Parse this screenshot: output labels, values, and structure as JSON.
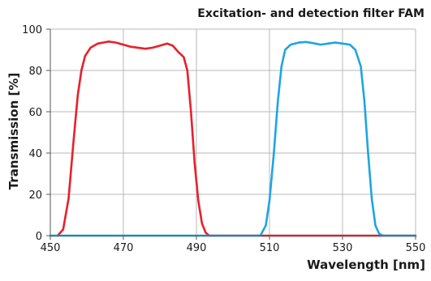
{
  "chart_data": {
    "type": "line",
    "title": "Excitation- and detection filter FAM",
    "xlabel": "Wavelength [nm]",
    "ylabel": "Transmission [%]",
    "xlim": [
      450,
      550
    ],
    "ylim": [
      0,
      100
    ],
    "x_ticks": [
      450,
      470,
      490,
      510,
      530,
      550
    ],
    "y_ticks": [
      0,
      20,
      40,
      60,
      80,
      100
    ],
    "grid": true,
    "legend": "none",
    "series": [
      {
        "color": "#e8202a",
        "points": [
          [
            452,
            0
          ],
          [
            453.5,
            3
          ],
          [
            455,
            18
          ],
          [
            456.3,
            45
          ],
          [
            457.5,
            68
          ],
          [
            458.5,
            80
          ],
          [
            459.5,
            87
          ],
          [
            461,
            91
          ],
          [
            463,
            93
          ],
          [
            466,
            94
          ],
          [
            468,
            93.5
          ],
          [
            470,
            92.5
          ],
          [
            472,
            91.5
          ],
          [
            474,
            91
          ],
          [
            476,
            90.5
          ],
          [
            478,
            91
          ],
          [
            480,
            92
          ],
          [
            482,
            93
          ],
          [
            483.5,
            92
          ],
          [
            485,
            89
          ],
          [
            486.5,
            86.5
          ],
          [
            487.5,
            80
          ],
          [
            488.5,
            60
          ],
          [
            489.5,
            35
          ],
          [
            490.5,
            17
          ],
          [
            491.5,
            6
          ],
          [
            492.5,
            1.5
          ],
          [
            493.5,
            0
          ],
          [
            550,
            0
          ]
        ]
      },
      {
        "color": "#1ea5e0",
        "points": [
          [
            450,
            0
          ],
          [
            507.5,
            0
          ],
          [
            509,
            5
          ],
          [
            510,
            17
          ],
          [
            511.2,
            40
          ],
          [
            512.3,
            65
          ],
          [
            513.3,
            82
          ],
          [
            514.3,
            90
          ],
          [
            515.8,
            92.5
          ],
          [
            518,
            93.5
          ],
          [
            520,
            93.8
          ],
          [
            522,
            93.2
          ],
          [
            524,
            92.5
          ],
          [
            526,
            93
          ],
          [
            528,
            93.5
          ],
          [
            530,
            93
          ],
          [
            532,
            92.5
          ],
          [
            533.5,
            90
          ],
          [
            535,
            82
          ],
          [
            536,
            65
          ],
          [
            537,
            40
          ],
          [
            538,
            18
          ],
          [
            539,
            5
          ],
          [
            540,
            1
          ],
          [
            541,
            0
          ],
          [
            550,
            0
          ]
        ]
      }
    ]
  }
}
